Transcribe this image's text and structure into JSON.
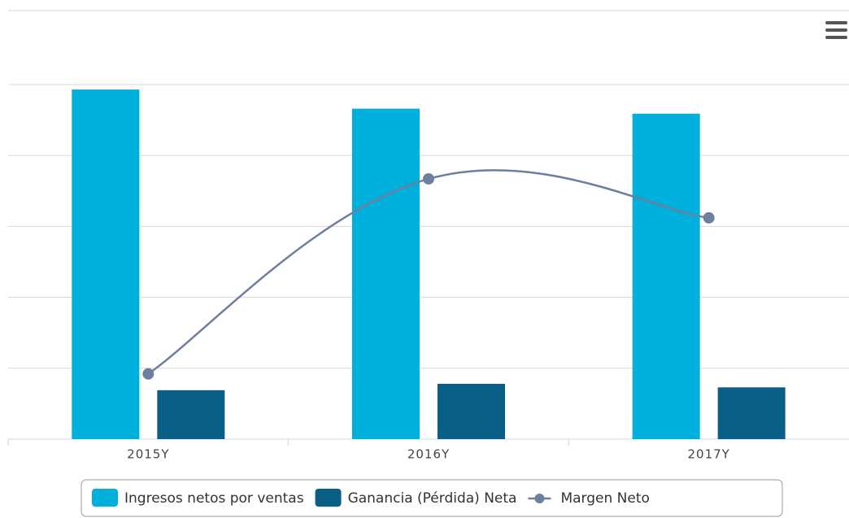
{
  "chart_data": {
    "type": "bar",
    "categories": [
      "2015Y",
      "2016Y",
      "2017Y"
    ],
    "series": [
      {
        "name": "Ingresos netos por ventas",
        "type": "bar",
        "color": "#00b0dc",
        "values": [
          4.93,
          4.66,
          4.59
        ]
      },
      {
        "name": "Ganancia (Pérdida) Neta",
        "type": "bar",
        "color": "#0a5f87",
        "values": [
          0.69,
          0.78,
          0.73
        ]
      },
      {
        "name": "Margen Neto",
        "type": "line",
        "color": "#6e7e9e",
        "values": [
          0.92,
          3.67,
          3.12
        ]
      }
    ],
    "ylim": [
      0,
      5
    ],
    "yticks": [
      0,
      1,
      2,
      3,
      4,
      5
    ],
    "grid": true
  }
}
